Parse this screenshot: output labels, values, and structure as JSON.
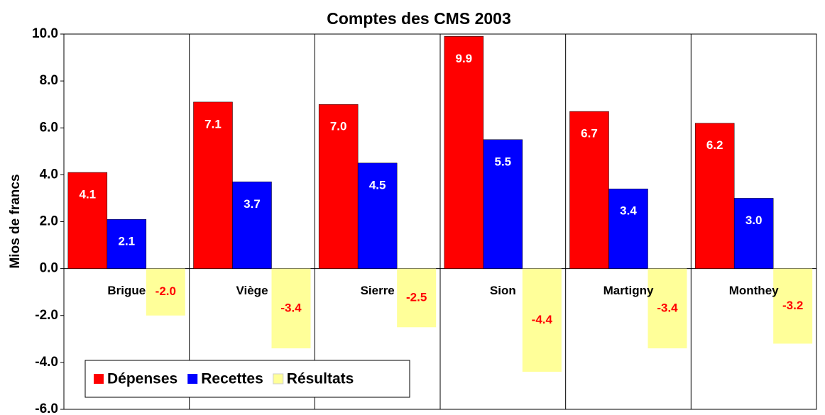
{
  "chart_data": {
    "type": "bar",
    "title": "Comptes des CMS 2003",
    "y_label": "Mios de francs",
    "categories": [
      "Brigue",
      "Viège",
      "Sierre",
      "Sion",
      "Martigny",
      "Monthey"
    ],
    "series": [
      {
        "name": "Dépenses",
        "color": "#ff0000",
        "values": [
          4.1,
          7.1,
          7.0,
          9.9,
          6.7,
          6.2
        ],
        "value_labels": [
          "4.1",
          "7.1",
          "7.0",
          "9.9",
          "6.7",
          "6.2"
        ]
      },
      {
        "name": "Recettes",
        "color": "#0000ff",
        "values": [
          2.1,
          3.7,
          4.5,
          5.5,
          3.4,
          3.0
        ],
        "value_labels": [
          "2.1",
          "3.7",
          "4.5",
          "5.5",
          "3.4",
          "3.0"
        ]
      },
      {
        "name": "Résultats",
        "color": "#ffff99",
        "values": [
          -2.0,
          -3.4,
          -2.5,
          -4.4,
          -3.4,
          -3.2
        ],
        "value_labels": [
          "-2.0",
          "-3.4",
          "-2.5",
          "-4.4",
          "-3.4",
          "-3.2"
        ]
      }
    ],
    "ylim": [
      -6,
      10
    ],
    "yticks": [
      {
        "value": -6,
        "label": "-6.0"
      },
      {
        "value": -4,
        "label": "-4.0"
      },
      {
        "value": -2,
        "label": "-2.0"
      },
      {
        "value": 0,
        "label": "0.0"
      },
      {
        "value": 2,
        "label": "2.0"
      },
      {
        "value": 4,
        "label": "4.0"
      },
      {
        "value": 6,
        "label": "6.0"
      },
      {
        "value": 8,
        "label": "8.0"
      },
      {
        "value": 10,
        "label": "10.0"
      }
    ],
    "legend": "lower left"
  }
}
